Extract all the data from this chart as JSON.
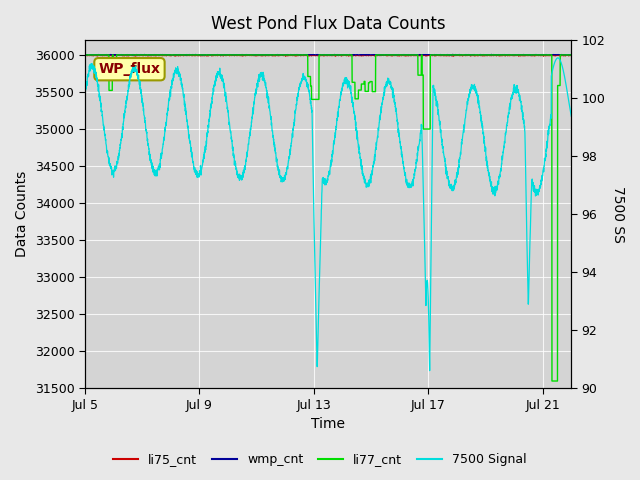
{
  "title": "West Pond Flux Data Counts",
  "xlabel": "Time",
  "ylabel_left": "Data Counts",
  "ylabel_right": "7500 SS",
  "ylim_left": [
    31500,
    36200
  ],
  "ylim_right": [
    90,
    102
  ],
  "xlim": [
    0,
    17
  ],
  "xtick_positions": [
    0,
    4,
    8,
    12,
    16
  ],
  "xtick_labels": [
    "Jul 5",
    "Jul 9",
    "Jul 13",
    "Jul 17",
    "Jul 21"
  ],
  "ytick_left": [
    31500,
    32000,
    32500,
    33000,
    33500,
    34000,
    34500,
    35000,
    35500,
    36000
  ],
  "ytick_right": [
    90,
    92,
    94,
    96,
    98,
    100,
    102
  ],
  "bg_color": "#e8e8e8",
  "plot_bg_color": "#d4d4d4",
  "wp_flux_box_facecolor": "#ffffaa",
  "wp_flux_box_edgecolor": "#999900",
  "wp_flux_text_color": "#880000",
  "wp_flux_label": "WP_flux",
  "li77_color": "#00dd00",
  "cyan_color": "#00dddd",
  "li75_color": "#cc0000",
  "wmp_color": "#000099",
  "legend_items": [
    "li75_cnt",
    "wmp_cnt",
    "li77_cnt",
    "7500 Signal"
  ]
}
